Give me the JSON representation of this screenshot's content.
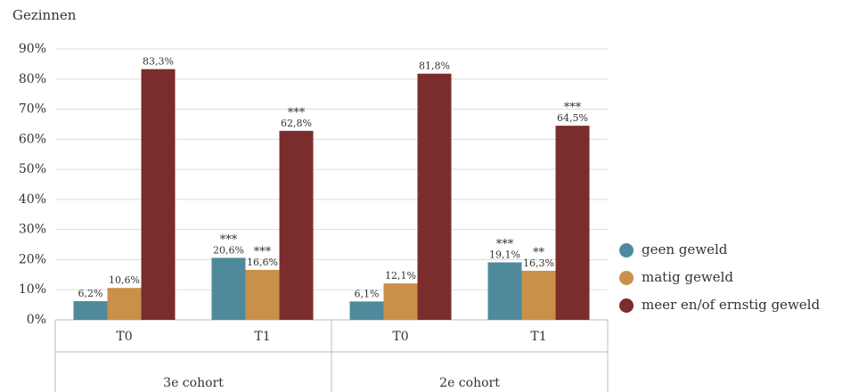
{
  "chart_data": {
    "type": "bar",
    "title": "Gezinnen",
    "categories": [
      "T0",
      "T1",
      "T0",
      "T1"
    ],
    "groups": [
      {
        "label": "3e cohort",
        "size": 2
      },
      {
        "label": "2e cohort",
        "size": 2
      }
    ],
    "series": [
      {
        "name": "geen geweld",
        "color": "#4e8a9c",
        "values": [
          6.2,
          20.6,
          6.1,
          19.1
        ],
        "value_labels": [
          "6,2%",
          "20,6%",
          "6,1%",
          "19,1%"
        ],
        "annotations": [
          null,
          "***",
          null,
          "***"
        ]
      },
      {
        "name": "matig geweld",
        "color": "#c89048",
        "values": [
          10.6,
          16.6,
          12.1,
          16.3
        ],
        "value_labels": [
          "10,6%",
          "16,6%",
          "12,1%",
          "16,3%"
        ],
        "annotations": [
          null,
          "***",
          null,
          "**"
        ]
      },
      {
        "name": "meer en/of ernstig geweld",
        "color": "#7b2c2c",
        "values": [
          83.3,
          62.8,
          81.8,
          64.5
        ],
        "value_labels": [
          "83,3%",
          "62,8%",
          "81,8%",
          "64,5%"
        ],
        "annotations": [
          null,
          "***",
          null,
          "***"
        ]
      }
    ],
    "ylim": [
      0,
      90
    ],
    "yticks": [
      {
        "value": 0,
        "label": "0%"
      },
      {
        "value": 10,
        "label": "10%"
      },
      {
        "value": 20,
        "label": "20%"
      },
      {
        "value": 30,
        "label": "30%"
      },
      {
        "value": 40,
        "label": "40%"
      },
      {
        "value": 50,
        "label": "50%"
      },
      {
        "value": 60,
        "label": "60%"
      },
      {
        "value": 70,
        "label": "70%"
      },
      {
        "value": 80,
        "label": "80%"
      },
      {
        "value": 90,
        "label": "90%"
      }
    ],
    "grid": true,
    "legend": "right"
  }
}
